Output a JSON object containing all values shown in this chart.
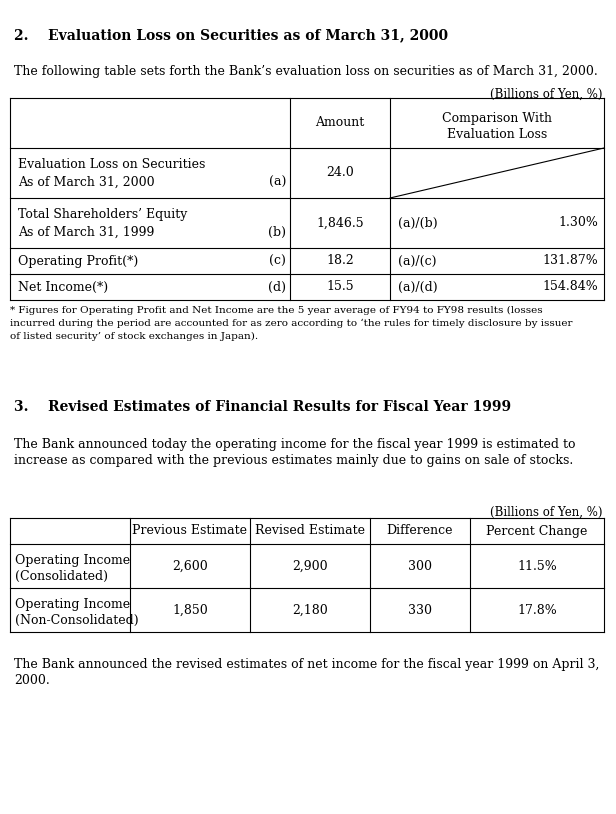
{
  "bg_color": "#ffffff",
  "section2_title": "2.    Evaluation Loss on Securities as of March 31, 2000",
  "section2_intro": "The following table sets forth the Bank’s evaluation loss on securities as of March 31, 2000.",
  "billions_note": "(Billions of Yen, %)",
  "footnote_line1": "* Figures for Operating Profit and Net Income are the 5 year average of FY94 to FY98 results (losses",
  "footnote_line2": "incurred during the period are accounted for as zero according to ‘the rules for timely disclosure by issuer",
  "footnote_line3": "of listed security’ of stock exchanges in Japan).",
  "section3_title": "3.    Revised Estimates of Financial Results for Fiscal Year 1999",
  "section3_intro1": "The Bank announced today the operating income for the fiscal year 1999 is estimated to",
  "section3_intro2": "increase as compared with the previous estimates mainly due to gains on sale of stocks.",
  "section3_close1": "The Bank announced the revised estimates of net income for the fiscal year 1999 on April 3,",
  "section3_close2": "2000."
}
